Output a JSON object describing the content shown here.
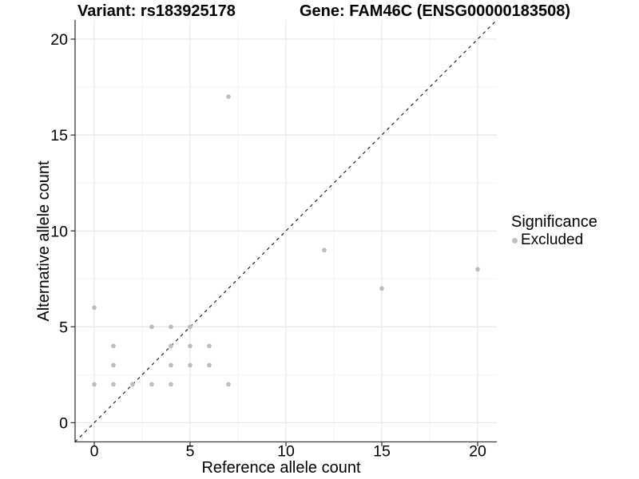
{
  "titles": {
    "variant": "Variant: rs183925178",
    "gene": "Gene: FAM46C (ENSG00000183508)"
  },
  "axes": {
    "xlabel": "Reference allele count",
    "ylabel": "Alternative allele count"
  },
  "legend": {
    "title": "Significance",
    "items": [
      {
        "label": "Excluded",
        "color": "#bdbdbd"
      }
    ]
  },
  "chart_data": {
    "type": "scatter",
    "title": "Variant: rs183925178 — Gene: FAM46C (ENSG00000183508)",
    "xlabel": "Reference allele count",
    "ylabel": "Alternative allele count",
    "xlim": [
      -1,
      21
    ],
    "ylim": [
      -1,
      21
    ],
    "xticks": [
      0,
      5,
      10,
      15,
      20
    ],
    "yticks": [
      0,
      5,
      10,
      15,
      20
    ],
    "xminor": [
      2.5,
      7.5,
      12.5,
      17.5
    ],
    "yminor": [
      2.5,
      7.5,
      12.5,
      17.5
    ],
    "grid": true,
    "legend_position": "right",
    "series": [
      {
        "name": "Excluded",
        "points": [
          [
            0,
            2
          ],
          [
            0,
            6
          ],
          [
            1,
            2
          ],
          [
            1,
            3
          ],
          [
            1,
            4
          ],
          [
            2,
            2
          ],
          [
            3,
            2
          ],
          [
            3,
            5
          ],
          [
            4,
            2
          ],
          [
            4,
            3
          ],
          [
            4,
            4
          ],
          [
            4,
            5
          ],
          [
            5,
            3
          ],
          [
            5,
            4
          ],
          [
            5,
            5
          ],
          [
            6,
            3
          ],
          [
            6,
            4
          ],
          [
            7,
            2
          ],
          [
            7,
            17
          ],
          [
            12,
            9
          ],
          [
            15,
            7
          ],
          [
            20,
            8
          ]
        ]
      }
    ],
    "identity_line": {
      "from": [
        -1,
        -1
      ],
      "to": [
        21,
        21
      ],
      "style": "dashed"
    },
    "colors": {
      "point": "#bdbdbd",
      "grid_major": "#e6e6e6",
      "grid_minor": "#f3f3f3",
      "axis_line": "#3a3a3a",
      "identity_line": "#111111",
      "tick_text": "#000000",
      "background": "#ffffff"
    },
    "tick_font_px": 19.5,
    "point_radius_px": 2.9
  }
}
